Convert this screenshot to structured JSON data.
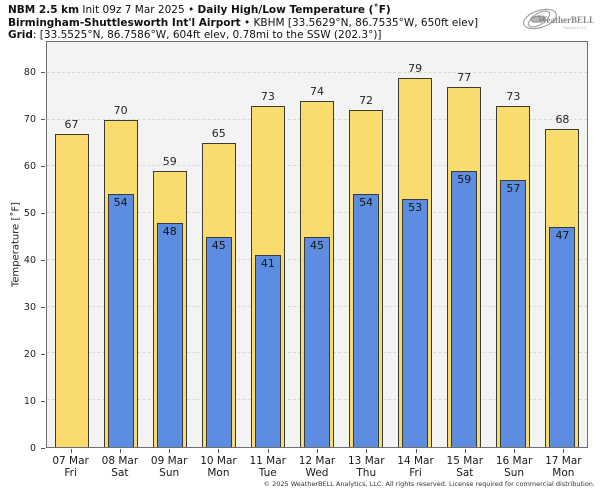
{
  "header": {
    "l1_bold1": "NBM 2.5 km",
    "l1_reg1": " Init 09z 7 Mar 2025 • ",
    "l1_bold2": "Daily High/Low Temperature (˚F)",
    "l2_bold1": "Birmingham-Shuttlesworth Int'l Airport",
    "l2_reg1": " • KBHM [33.5629°N, 86.7535°W, 650ft elev]",
    "l3_bold1": "Grid",
    "l3_reg1": ": [33.5525°N, 86.7586°W, 604ft elev, 0.78mi to the SSW (202.3°)]"
  },
  "logo": {
    "text": "WeatherBELL",
    "subtext": "Analytics LLC"
  },
  "colors": {
    "high_fill": "#FADC6E",
    "low_fill": "#5C8DE0",
    "bar_border": "#3A3A3A",
    "plot_bg": "#F3F3F3",
    "grid": "#D9D9D9"
  },
  "chart_data": {
    "type": "bar",
    "title": "Daily High/Low Temperature (°F)",
    "ylabel": "Temperature [˚F]",
    "xlabel": "",
    "ylim": [
      0,
      86.6
    ],
    "yticks": [
      0,
      10,
      20,
      30,
      40,
      50,
      60,
      70,
      80
    ],
    "grid": "horizontal-dashed",
    "legend_position": "none",
    "categories": [
      {
        "date": "07 Mar",
        "day": "Fri"
      },
      {
        "date": "08 Mar",
        "day": "Sat"
      },
      {
        "date": "09 Mar",
        "day": "Sun"
      },
      {
        "date": "10 Mar",
        "day": "Mon"
      },
      {
        "date": "11 Mar",
        "day": "Tue"
      },
      {
        "date": "12 Mar",
        "day": "Wed"
      },
      {
        "date": "13 Mar",
        "day": "Thu"
      },
      {
        "date": "14 Mar",
        "day": "Fri"
      },
      {
        "date": "15 Mar",
        "day": "Sat"
      },
      {
        "date": "16 Mar",
        "day": "Sun"
      },
      {
        "date": "17 Mar",
        "day": "Mon"
      }
    ],
    "series": [
      {
        "name": "High",
        "color": "#FADC6E",
        "values": [
          67,
          70,
          59,
          65,
          73,
          74,
          72,
          79,
          77,
          73,
          68
        ]
      },
      {
        "name": "Low",
        "color": "#5C8DE0",
        "values": [
          null,
          54,
          48,
          45,
          41,
          45,
          54,
          53,
          59,
          57,
          47
        ]
      }
    ]
  },
  "footer": {
    "copyright": "© 2025 WeatherBELL Analytics, LLC. All rights reserved. License required for commercial distribution."
  }
}
